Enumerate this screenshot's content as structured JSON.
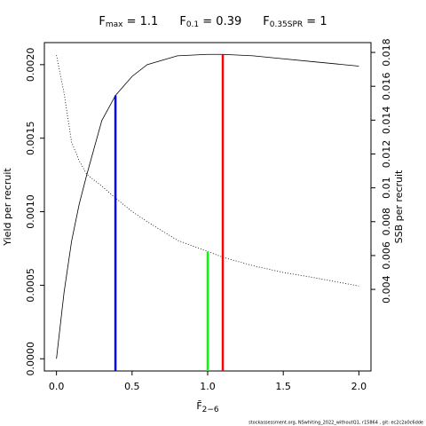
{
  "chart_data": {
    "type": "line",
    "title_parts": [
      {
        "base": "F",
        "sub": "max",
        "text": " = 1.1"
      },
      {
        "base": "F",
        "sub": "0.1",
        "text": " = 0.39"
      },
      {
        "base": "F",
        "sub": "0.35SPR",
        "text": " = 1"
      }
    ],
    "xlabel": "F̄",
    "xlabel_sub": "2−6",
    "ylabel": "Yield per recruit",
    "y2label": "SSB per recruit",
    "footer": "stockassessment.org, NSwhiting_2022_withoutQ1, r15864 , git: ec2c2a0c6dde",
    "x": [
      0,
      0.05,
      0.1,
      0.15,
      0.2,
      0.3,
      0.39,
      0.5,
      0.6,
      0.8,
      1.0,
      1.1,
      1.3,
      1.5,
      1.7,
      2.0
    ],
    "series": [
      {
        "name": "Yield per recruit",
        "color": "#000000",
        "dash": "solid",
        "values": [
          0,
          0.00045,
          0.0008,
          0.00105,
          0.00125,
          0.00162,
          0.00179,
          0.00192,
          0.002,
          0.00206,
          0.00207,
          0.00207,
          0.00206,
          0.00204,
          0.00202,
          0.00199
        ]
      },
      {
        "name": "SSB per recruit",
        "color": "#000000",
        "dash": "dotted",
        "axis": "y2",
        "values": [
          0.01784,
          0.0156,
          0.0127,
          0.0116,
          0.0108,
          0.0101,
          0.0094,
          0.0086,
          0.008,
          0.0069,
          0.00624,
          0.0059,
          0.0054,
          0.005,
          0.0047,
          0.0042
        ]
      }
    ],
    "reference_lines": [
      {
        "x": 0.39,
        "top": 0.00179,
        "color": "#0000ff"
      },
      {
        "x": 1.0,
        "top": 0.00624,
        "color": "#00ff00",
        "axis": "y2"
      },
      {
        "x": 1.1,
        "top": 0.00207,
        "color": "#ff0000"
      }
    ],
    "xlim": [
      -0.08,
      2.08
    ],
    "xticks": [
      {
        "value": 0,
        "label": "0.0"
      },
      0.5,
      {
        "value": 1,
        "label": "1.0"
      },
      1.5,
      {
        "value": 2,
        "label": "2.0"
      }
    ],
    "ylim": [
      -8.3e-05,
      0.00215
    ],
    "yticks": [
      {
        "value": 0,
        "label": "0.0000"
      },
      {
        "value": 0.0005,
        "label": "0.0005"
      },
      {
        "value": 0.001,
        "label": "0.0010"
      },
      {
        "value": 0.0015,
        "label": "0.0015"
      },
      {
        "value": 0.002,
        "label": "0.0020"
      }
    ],
    "y2lim": [
      -0.00082,
      0.01858
    ],
    "y2ticks": [
      0.004,
      0.006,
      0.008,
      0.01,
      0.012,
      0.014,
      0.016,
      0.018
    ]
  }
}
